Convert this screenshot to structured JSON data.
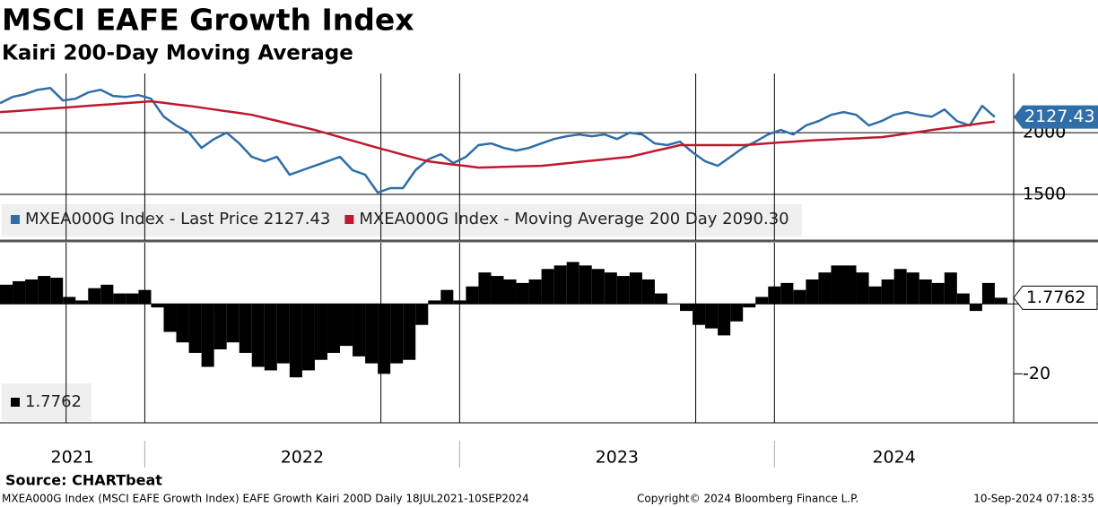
{
  "chart_data": [
    {
      "type": "line",
      "title": "MSCI EAFE Growth Index",
      "subtitle": "Kairi 200-Day Moving Average",
      "x": [
        2021.54,
        2021.58,
        2021.62,
        2021.66,
        2021.7,
        2021.74,
        2021.78,
        2021.82,
        2021.86,
        2021.9,
        2021.94,
        2021.98,
        2022.02,
        2022.06,
        2022.1,
        2022.14,
        2022.18,
        2022.22,
        2022.26,
        2022.3,
        2022.34,
        2022.38,
        2022.42,
        2022.46,
        2022.5,
        2022.54,
        2022.58,
        2022.62,
        2022.66,
        2022.7,
        2022.74,
        2022.78,
        2022.82,
        2022.86,
        2022.9,
        2022.94,
        2022.98,
        2023.02,
        2023.06,
        2023.1,
        2023.14,
        2023.18,
        2023.22,
        2023.26,
        2023.3,
        2023.34,
        2023.38,
        2023.42,
        2023.46,
        2023.5,
        2023.54,
        2023.58,
        2023.62,
        2023.66,
        2023.7,
        2023.74,
        2023.78,
        2023.82,
        2023.86,
        2023.9,
        2023.94,
        2023.98,
        2024.02,
        2024.06,
        2024.1,
        2024.14,
        2024.18,
        2024.22,
        2024.26,
        2024.3,
        2024.34,
        2024.38,
        2024.42,
        2024.46,
        2024.5,
        2024.54,
        2024.58,
        2024.62,
        2024.66,
        2024.7
      ],
      "series": [
        {
          "name": "MXEA000G Index - Last Price 2127.43",
          "color": "#2f6ea8",
          "values": [
            2239,
            2290,
            2312,
            2348,
            2362,
            2261,
            2275,
            2326,
            2348,
            2297,
            2290,
            2304,
            2275,
            2130,
            2058,
            2000,
            1877,
            1949,
            2000,
            1913,
            1804,
            1768,
            1804,
            1659,
            1696,
            1732,
            1768,
            1804,
            1696,
            1659,
            1515,
            1551,
            1551,
            1696,
            1783,
            1826,
            1754,
            1804,
            1899,
            1913,
            1877,
            1855,
            1877,
            1913,
            1949,
            1971,
            1986,
            1971,
            1986,
            1949,
            2000,
            1986,
            1913,
            1899,
            1928,
            1841,
            1768,
            1732,
            1804,
            1877,
            1928,
            1986,
            2022,
            1986,
            2058,
            2094,
            2145,
            2167,
            2145,
            2058,
            2094,
            2145,
            2167,
            2145,
            2130,
            2188,
            2094,
            2058,
            2217,
            2127.43
          ]
        },
        {
          "name": "MXEA000G Index - Moving Average 200 Day 2090.30",
          "color": "#c0182f",
          "values": [
            2167,
            2174,
            2181,
            2189,
            2196,
            2203,
            2210,
            2218,
            2225,
            2232,
            2240,
            2247,
            2254,
            2242,
            2229,
            2217,
            2203,
            2188,
            2174,
            2160,
            2145,
            2120,
            2096,
            2071,
            2047,
            2022,
            1993,
            1964,
            1935,
            1906,
            1877,
            1850,
            1822,
            1795,
            1768,
            1755,
            1742,
            1730,
            1717,
            1720,
            1723,
            1726,
            1729,
            1732,
            1742,
            1752,
            1763,
            1773,
            1783,
            1794,
            1804,
            1828,
            1852,
            1875,
            1899,
            1899,
            1899,
            1899,
            1899,
            1899,
            1906,
            1914,
            1921,
            1928,
            1935,
            1940,
            1945,
            1950,
            1954,
            1959,
            1964,
            1978,
            1993,
            2007,
            2022,
            2036,
            2049,
            2063,
            2077,
            2090.3
          ]
        }
      ],
      "xlim": [
        2021.54,
        2024.76
      ],
      "ylim": [
        1130,
        2480
      ],
      "yticks": [
        1500,
        2000
      ],
      "grid": true
    },
    {
      "type": "bar",
      "x": [
        2021.54,
        2021.58,
        2021.62,
        2021.66,
        2021.7,
        2021.74,
        2021.78,
        2021.82,
        2021.86,
        2021.9,
        2021.94,
        2021.98,
        2022.02,
        2022.06,
        2022.1,
        2022.14,
        2022.18,
        2022.22,
        2022.26,
        2022.3,
        2022.34,
        2022.38,
        2022.42,
        2022.46,
        2022.5,
        2022.54,
        2022.58,
        2022.62,
        2022.66,
        2022.7,
        2022.74,
        2022.78,
        2022.82,
        2022.86,
        2022.9,
        2022.94,
        2022.98,
        2023.02,
        2023.06,
        2023.1,
        2023.14,
        2023.18,
        2023.22,
        2023.26,
        2023.3,
        2023.34,
        2023.38,
        2023.42,
        2023.46,
        2023.5,
        2023.54,
        2023.58,
        2023.62,
        2023.66,
        2023.7,
        2023.74,
        2023.78,
        2023.82,
        2023.86,
        2023.9,
        2023.94,
        2023.98,
        2024.02,
        2024.06,
        2024.1,
        2024.14,
        2024.18,
        2024.22,
        2024.26,
        2024.3,
        2024.34,
        2024.38,
        2024.42,
        2024.46,
        2024.5,
        2024.54,
        2024.58,
        2024.62,
        2024.66,
        2024.7
      ],
      "series": [
        {
          "name": "1.7762",
          "color": "#000000",
          "values": [
            5.5,
            6.5,
            7,
            8,
            7.5,
            2,
            1,
            4.5,
            5.5,
            3,
            3,
            4,
            -1,
            -8,
            -11,
            -14,
            -18,
            -13,
            -11,
            -14,
            -18,
            -19,
            -17,
            -21,
            -19,
            -16,
            -14,
            -12,
            -15,
            -17,
            -20,
            -17,
            -16,
            -6,
            1,
            4,
            1,
            5,
            9,
            8,
            7,
            6,
            7,
            10,
            11,
            12,
            11,
            10,
            9,
            8,
            9,
            7,
            3,
            0,
            -2,
            -6,
            -7,
            -9,
            -5,
            -1,
            2,
            5,
            6,
            4,
            7,
            9,
            11,
            11,
            9,
            5,
            7,
            10,
            9,
            7,
            6,
            9,
            3,
            -2,
            6,
            1.7762
          ]
        }
      ],
      "xlim": [
        2021.54,
        2024.76
      ],
      "ylim": [
        -34,
        17.5
      ],
      "yticks": [
        -20
      ],
      "xticks": [
        {
          "value": 2021.77,
          "label": "2021"
        },
        {
          "value": 2022.5,
          "label": "2022"
        },
        {
          "value": 2023.5,
          "label": "2023"
        },
        {
          "value": 2024.38,
          "label": "2024"
        }
      ]
    }
  ],
  "source": "Source: CHARTbeat",
  "footer": {
    "description": "MXEA000G Index (MSCI EAFE Growth Index) EAFE Growth Kairi 200D  Daily 18JUL2021-10SEP2024",
    "copyright": "Copyright© 2024 Bloomberg Finance L.P.",
    "timestamp": "10-Sep-2024 07:18:35"
  }
}
